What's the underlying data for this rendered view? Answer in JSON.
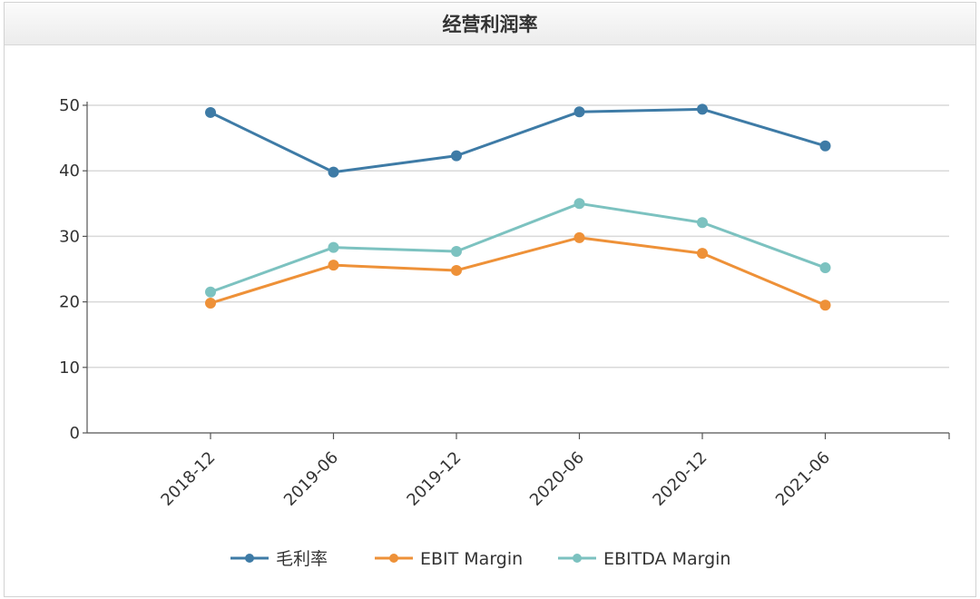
{
  "header": {
    "title": "经营利润率"
  },
  "chart_data": {
    "type": "line",
    "title": "经营利润率",
    "categories": [
      "2018-12",
      "2019-06",
      "2019-12",
      "2020-06",
      "2020-12",
      "2021-06"
    ],
    "series": [
      {
        "name": "毛利率",
        "color": "#3e7ba6",
        "values": [
          48.9,
          39.8,
          42.3,
          49.0,
          49.4,
          43.8
        ]
      },
      {
        "name": "EBIT Margin",
        "color": "#ee9138",
        "values": [
          19.8,
          25.6,
          24.8,
          29.8,
          27.4,
          19.5
        ]
      },
      {
        "name": "EBITDA Margin",
        "color": "#7cc2c0",
        "values": [
          21.5,
          28.3,
          27.7,
          35.0,
          32.1,
          25.2
        ]
      }
    ],
    "ylim": [
      0,
      50
    ],
    "yticks": [
      0,
      10,
      20,
      30,
      40,
      50
    ],
    "grid": true,
    "legend_position": "bottom"
  }
}
